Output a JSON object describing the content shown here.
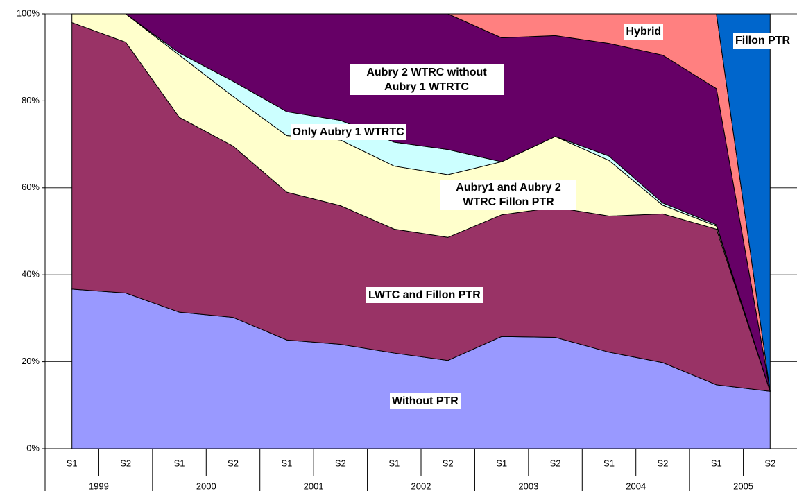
{
  "chart_data": {
    "type": "stacked_area",
    "categories": [
      "S1",
      "S2",
      "S1",
      "S2",
      "S1",
      "S2",
      "S1",
      "S2",
      "S1",
      "S2",
      "S1",
      "S2",
      "S1",
      "S2"
    ],
    "groups": [
      "1999",
      "2000",
      "2001",
      "2002",
      "2003",
      "2004",
      "2005"
    ],
    "series": [
      {
        "name": "Without PTR",
        "color": "#9999ff",
        "values": [
          36.7,
          35.8,
          31.4,
          30.2,
          25,
          24,
          22,
          20.3,
          25.8,
          25.6,
          22.2,
          19.8,
          14.7,
          13.2
        ]
      },
      {
        "name": "LWTC and Fillon PTR",
        "color": "#993366",
        "values": [
          61.3,
          57.7,
          44.8,
          39.4,
          34,
          31.9,
          28.5,
          28.3,
          28,
          29.9,
          31.3,
          34.2,
          35.8,
          0
        ]
      },
      {
        "name": "Only Aubry 1 WTRTC",
        "color": "#ffffcc",
        "values": [
          2,
          6.5,
          14.3,
          11.4,
          13,
          15.1,
          14.5,
          14.4,
          12.2,
          16.3,
          12.8,
          2,
          0.7,
          0
        ]
      },
      {
        "name": "Aubry1 and Aubry 2 WTRC Fillon PTR",
        "color": "#ccffff",
        "values": [
          0,
          0,
          0.5,
          3.5,
          5.5,
          4.5,
          5.5,
          5.8,
          0,
          0,
          1,
          0.5,
          0.3,
          0
        ]
      },
      {
        "name": "Aubry 2 WTRC without Aubry 1 WTRTC",
        "color": "#660066",
        "values": [
          0,
          0,
          9,
          15.5,
          22.5,
          24.5,
          29.5,
          31.2,
          28.5,
          23.2,
          25.9,
          34,
          31.3,
          0
        ]
      },
      {
        "name": "Hybrid",
        "color": "#ff8080",
        "values": [
          0,
          0,
          0,
          0,
          0,
          0,
          0,
          0,
          5.5,
          5,
          6.8,
          9.5,
          17.2,
          0
        ]
      },
      {
        "name": "Fillon PTR",
        "color": "#0066cc",
        "values": [
          0,
          0,
          0,
          0,
          0,
          0,
          0,
          0,
          0,
          0,
          0,
          0,
          0,
          86.8
        ]
      }
    ],
    "ylim": [
      0,
      100
    ],
    "yticks": [
      {
        "value": 0,
        "label": "0%"
      },
      {
        "value": 20,
        "label": "20%"
      },
      {
        "value": 40,
        "label": "40%"
      },
      {
        "value": 60,
        "label": "60%"
      },
      {
        "value": 80,
        "label": "80%"
      },
      {
        "value": 100,
        "label": "100%"
      }
    ],
    "grid": true
  }
}
